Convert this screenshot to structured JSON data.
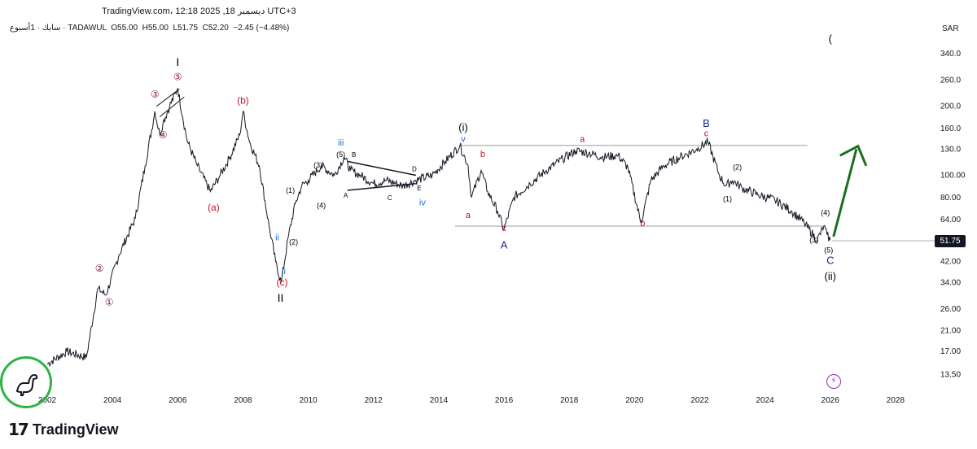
{
  "header": {
    "source_line": "TradingView.com، 12:18 2025 ,18 ديسمبر UTC+3",
    "symbol_line": "سابك · 1أسبوع · TADAWUL",
    "open": "O55.00",
    "high": "H55.00",
    "low": "L51.75",
    "close": "C52.20",
    "change": "−2.45 (−4.48%)"
  },
  "currency": "SAR",
  "last_price_label": "51.75",
  "brand_name": "TradingView",
  "colors": {
    "price_line": "#131722",
    "red_label": "#c0152c",
    "maroon_label": "#8b1a4f",
    "blue_label": "#1e6fd9",
    "navy_label": "#1a237e",
    "arrow_green": "#1b6e20",
    "range_line": "#9e9e9e",
    "badge_green": "#2fb344",
    "bolt_purple": "#9c27b0"
  },
  "icons": [
    "dinosaur-icon",
    "lightning-icon"
  ],
  "chart_data": {
    "type": "line",
    "title": "SABIC weekly, TADAWUL",
    "scale": "log",
    "ylim": [
      11.5,
      420
    ],
    "xlim": [
      2001.8,
      2029
    ],
    "x_ticks": [
      "2002",
      "2004",
      "2006",
      "2008",
      "2010",
      "2012",
      "2014",
      "2016",
      "2018",
      "2020",
      "2022",
      "2024",
      "2026",
      "2028"
    ],
    "y_ticks": [
      "340.0",
      "260.0",
      "200.0",
      "160.0",
      "130.0",
      "100.00",
      "80.00",
      "64.00",
      "51.75",
      "42.00",
      "34.00",
      "26.00",
      "21.00",
      "17.00",
      "13.50"
    ],
    "series": [
      {
        "name": "Close",
        "x": [
          2002.0,
          2002.6,
          2003.2,
          2003.55,
          2003.8,
          2004.2,
          2004.7,
          2005.0,
          2005.3,
          2005.45,
          2005.55,
          2005.75,
          2006.0,
          2006.15,
          2006.3,
          2006.6,
          2007.0,
          2007.3,
          2007.6,
          2007.9,
          2008.0,
          2008.2,
          2008.5,
          2008.8,
          2009.0,
          2009.17,
          2009.4,
          2009.6,
          2009.8,
          2010.0,
          2010.4,
          2010.8,
          2011.1,
          2011.3,
          2011.6,
          2012.0,
          2012.4,
          2012.9,
          2013.3,
          2013.8,
          2014.2,
          2014.65,
          2014.9,
          2015.0,
          2015.3,
          2015.5,
          2015.8,
          2016.0,
          2016.3,
          2016.8,
          2017.3,
          2017.8,
          2018.2,
          2018.6,
          2019.0,
          2019.5,
          2019.8,
          2020.2,
          2020.5,
          2020.9,
          2021.4,
          2021.9,
          2022.25,
          2022.6,
          2022.8,
          2023.0,
          2023.3,
          2023.8,
          2024.3,
          2024.8,
          2025.2,
          2025.6,
          2025.8,
          2025.9,
          2026.0
        ],
        "y": [
          15,
          17,
          16,
          32,
          30,
          45,
          65,
          110,
          190,
          150,
          170,
          200,
          240,
          180,
          140,
          110,
          85,
          100,
          120,
          150,
          190,
          140,
          110,
          60,
          42,
          34,
          55,
          75,
          90,
          95,
          110,
          100,
          120,
          105,
          100,
          92,
          95,
          90,
          95,
          100,
          115,
          135,
          110,
          80,
          105,
          85,
          70,
          58,
          80,
          92,
          105,
          118,
          128,
          125,
          120,
          122,
          108,
          62,
          95,
          110,
          120,
          130,
          140,
          100,
          90,
          95,
          88,
          82,
          78,
          70,
          62,
          52,
          60,
          55,
          52
        ]
      }
    ]
  },
  "wave_labels": {
    "I": "I",
    "II": "II",
    "c1": "①",
    "c2": "②",
    "c3": "③",
    "c4": "④",
    "c5": "⑤",
    "a_paren": "(a)",
    "b_paren": "(b)",
    "c_paren": "(c)",
    "ii_blue_1": "ii",
    "ii_blue_2": "ii",
    "p1": "(1)",
    "p2": "(2)",
    "p3": "(3)",
    "p4": "(4)",
    "p5": "(5)",
    "iii": "iii",
    "iv": "iv",
    "tri_A": "A",
    "tri_B": "B",
    "tri_C": "C",
    "tri_D": "D",
    "tri_E": "E",
    "i_paren": "(i)",
    "v": "v",
    "a1": "a",
    "b1": "b",
    "c1_small": "c",
    "A_big": "A",
    "a2": "a",
    "b2": "b",
    "c2_small": "c",
    "B_big": "B",
    "q1": "(1)",
    "q2": "(2)",
    "q3": "(3)",
    "q4": "(4)",
    "q5": "(5)",
    "C_big": "C",
    "ii_paren": "(ii)",
    "top_paren": "("
  }
}
